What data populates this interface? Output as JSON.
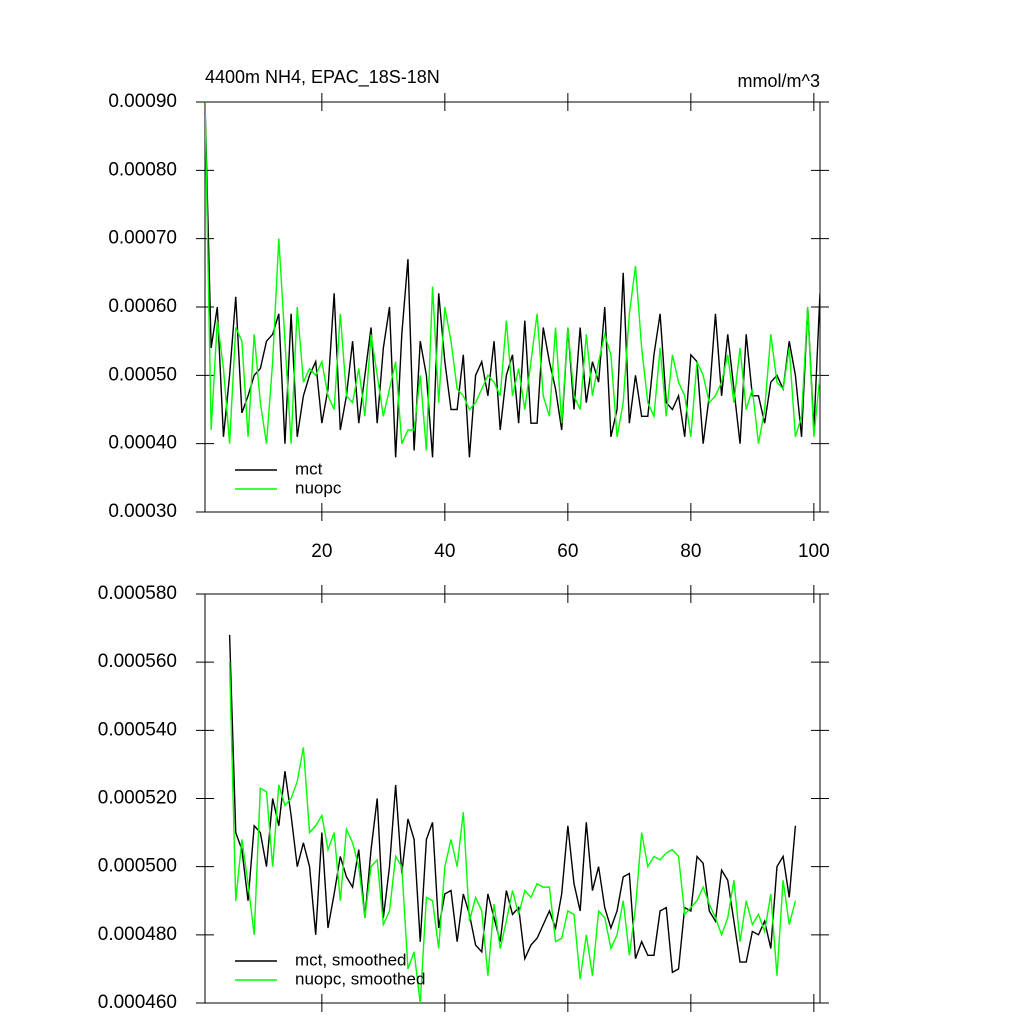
{
  "chart_data": [
    {
      "type": "line",
      "title": "4400m NH4, EPAC_18S-18N",
      "right_title": "mmol/m^3",
      "xlim": [
        1,
        101
      ],
      "xticks": [
        20,
        40,
        60,
        80,
        100
      ],
      "xtick_labels": true,
      "ylim": [
        0.0003,
        0.0009
      ],
      "yticks": [
        {
          "value": 0.0003,
          "label": "0.00030"
        },
        {
          "value": 0.0004,
          "label": "0.00040"
        },
        {
          "value": 0.0005,
          "label": "0.00050"
        },
        {
          "value": 0.0006,
          "label": "0.00060"
        },
        {
          "value": 0.0007,
          "label": "0.00070"
        },
        {
          "value": 0.0008,
          "label": "0.00080"
        },
        {
          "value": 0.0009,
          "label": "0.00090"
        }
      ],
      "legend": "lower left",
      "x": [
        1,
        2,
        3,
        4,
        5,
        6,
        7,
        8,
        9,
        10,
        11,
        12,
        13,
        14,
        15,
        16,
        17,
        18,
        19,
        20,
        21,
        22,
        23,
        24,
        25,
        26,
        27,
        28,
        29,
        30,
        31,
        32,
        33,
        34,
        35,
        36,
        37,
        38,
        39,
        40,
        41,
        42,
        43,
        44,
        45,
        46,
        47,
        48,
        49,
        50,
        51,
        52,
        53,
        54,
        55,
        56,
        57,
        58,
        59,
        60,
        61,
        62,
        63,
        64,
        65,
        66,
        67,
        68,
        69,
        70,
        71,
        72,
        73,
        74,
        75,
        76,
        77,
        78,
        79,
        80,
        81,
        82,
        83,
        84,
        85,
        86,
        87,
        88,
        89,
        90,
        91,
        92,
        93,
        94,
        95,
        96,
        97,
        98,
        99,
        100,
        101
      ],
      "series": [
        {
          "name": "mct",
          "color": "#000000",
          "values": [
            0.0009,
            0.00054,
            0.0006,
            0.00041,
            0.0005,
            0.000615,
            0.000445,
            0.00047,
            0.0005,
            0.00051,
            0.00055,
            0.00056,
            0.00059,
            0.0004,
            0.00059,
            0.00041,
            0.00047,
            0.0005,
            0.00052,
            0.00043,
            0.00048,
            0.00062,
            0.00042,
            0.00047,
            0.00055,
            0.00043,
            0.0005,
            0.00057,
            0.00043,
            0.00054,
            0.0006,
            0.00038,
            0.00056,
            0.00067,
            0.00039,
            0.00055,
            0.0005,
            0.00038,
            0.00062,
            0.00052,
            0.00045,
            0.00045,
            0.00053,
            0.00038,
            0.0005,
            0.00052,
            0.00047,
            0.00055,
            0.00042,
            0.0005,
            0.00053,
            0.00043,
            0.00058,
            0.00043,
            0.00043,
            0.00057,
            0.00052,
            0.00048,
            0.00042,
            0.00057,
            0.00045,
            0.00057,
            0.00046,
            0.00052,
            0.00049,
            0.0006,
            0.00041,
            0.00045,
            0.00065,
            0.00043,
            0.0005,
            0.00044,
            0.00044,
            0.00053,
            0.00059,
            0.00046,
            0.00045,
            0.00047,
            0.00041,
            0.00053,
            0.00052,
            0.0004,
            0.00047,
            0.00059,
            0.00047,
            0.00056,
            0.00048,
            0.0004,
            0.00056,
            0.00047,
            0.00047,
            0.00043,
            0.00049,
            0.0005,
            0.00048,
            0.00055,
            0.0005,
            0.00041,
            0.0006,
            0.00042,
            0.00062
          ]
        },
        {
          "name": "nuopc",
          "color": "#00ff00",
          "values": [
            0.0009,
            0.00042,
            0.00058,
            0.00051,
            0.0004,
            0.00057,
            0.00055,
            0.00041,
            0.00056,
            0.00046,
            0.0004,
            0.00052,
            0.0007,
            0.00055,
            0.0004,
            0.0006,
            0.00049,
            0.00051,
            0.0005,
            0.00052,
            0.00047,
            0.00045,
            0.00059,
            0.00047,
            0.00046,
            0.00051,
            0.00044,
            0.00056,
            0.0005,
            0.00044,
            0.00048,
            0.00052,
            0.0004,
            0.00042,
            0.00042,
            0.0005,
            0.00039,
            0.00063,
            0.00046,
            0.0006,
            0.00055,
            0.00048,
            0.00047,
            0.00045,
            0.00046,
            0.00048,
            0.0005,
            0.00049,
            0.00047,
            0.00058,
            0.00047,
            0.00051,
            0.00045,
            0.00052,
            0.00059,
            0.00047,
            0.00044,
            0.00057,
            0.00043,
            0.00057,
            0.00047,
            0.00045,
            0.00056,
            0.00047,
            0.00052,
            0.00056,
            0.00053,
            0.00041,
            0.00046,
            0.00059,
            0.00066,
            0.00054,
            0.00046,
            0.00044,
            0.00054,
            0.00044,
            0.00053,
            0.00049,
            0.00047,
            0.00041,
            0.00052,
            0.0005,
            0.00046,
            0.00047,
            0.00049,
            0.00053,
            0.00046,
            0.00054,
            0.00045,
            0.00048,
            0.0004,
            0.00045,
            0.00056,
            0.00049,
            0.00048,
            0.00054,
            0.00041,
            0.00044,
            0.0006,
            0.00041,
            0.0005
          ]
        }
      ]
    },
    {
      "type": "line",
      "xlim": [
        1,
        101
      ],
      "xticks": [
        20,
        40,
        60,
        80,
        100
      ],
      "xtick_labels": false,
      "ylim": [
        0.00046,
        0.00058
      ],
      "yticks": [
        {
          "value": 0.00046,
          "label": "0.000460"
        },
        {
          "value": 0.00048,
          "label": "0.000480"
        },
        {
          "value": 0.0005,
          "label": "0.000500"
        },
        {
          "value": 0.00052,
          "label": "0.000520"
        },
        {
          "value": 0.00054,
          "label": "0.000540"
        },
        {
          "value": 0.00056,
          "label": "0.000560"
        },
        {
          "value": 0.00058,
          "label": "0.000580"
        }
      ],
      "legend": "lower left",
      "x": [
        5,
        6,
        7,
        8,
        9,
        10,
        11,
        12,
        13,
        14,
        15,
        16,
        17,
        18,
        19,
        20,
        21,
        22,
        23,
        24,
        25,
        26,
        27,
        28,
        29,
        30,
        31,
        32,
        33,
        34,
        35,
        36,
        37,
        38,
        39,
        40,
        41,
        42,
        43,
        44,
        45,
        46,
        47,
        48,
        49,
        50,
        51,
        52,
        53,
        54,
        55,
        56,
        57,
        58,
        59,
        60,
        61,
        62,
        63,
        64,
        65,
        66,
        67,
        68,
        69,
        70,
        71,
        72,
        73,
        74,
        75,
        76,
        77,
        78,
        79,
        80,
        81,
        82,
        83,
        84,
        85,
        86,
        87,
        88,
        89,
        90,
        91,
        92,
        93,
        94,
        95,
        96,
        97
      ],
      "series": [
        {
          "name": "mct, smoothed",
          "color": "#000000",
          "values": [
            0.000568,
            0.00051,
            0.000505,
            0.00049,
            0.000512,
            0.00051,
            0.0005,
            0.00052,
            0.000512,
            0.000528,
            0.000515,
            0.0005,
            0.000507,
            0.0005,
            0.00048,
            0.00051,
            0.000482,
            0.000492,
            0.000503,
            0.000497,
            0.000494,
            0.000505,
            0.000485,
            0.000505,
            0.00052,
            0.000485,
            0.0005,
            0.000524,
            0.000498,
            0.000514,
            0.000508,
            0.000478,
            0.000508,
            0.000513,
            0.000482,
            0.000492,
            0.000493,
            0.000478,
            0.000492,
            0.000486,
            0.000477,
            0.000475,
            0.000492,
            0.000485,
            0.000478,
            0.000493,
            0.000486,
            0.000488,
            0.000473,
            0.000477,
            0.000479,
            0.000483,
            0.000487,
            0.000482,
            0.000492,
            0.000512,
            0.000495,
            0.000487,
            0.000513,
            0.000493,
            0.0005,
            0.000488,
            0.000482,
            0.000487,
            0.000497,
            0.000498,
            0.000473,
            0.000478,
            0.000474,
            0.000474,
            0.000487,
            0.000488,
            0.000469,
            0.00047,
            0.000488,
            0.000487,
            0.000503,
            0.000501,
            0.000487,
            0.000484,
            0.000499,
            0.000496,
            0.000484,
            0.000472,
            0.000472,
            0.000481,
            0.00048,
            0.000484,
            0.000476,
            0.0005,
            0.000503,
            0.000491,
            0.000512
          ]
        },
        {
          "name": "nuopc, smoothed",
          "color": "#00ff00",
          "values": [
            0.00056,
            0.00049,
            0.000508,
            0.000495,
            0.00048,
            0.000523,
            0.000522,
            0.0005,
            0.000524,
            0.000518,
            0.00052,
            0.000525,
            0.000535,
            0.00051,
            0.000512,
            0.000515,
            0.000505,
            0.00051,
            0.00049,
            0.000511,
            0.000507,
            0.0005,
            0.000485,
            0.0005,
            0.000502,
            0.000483,
            0.000487,
            0.000503,
            0.0005,
            0.00047,
            0.000475,
            0.00046,
            0.000491,
            0.00049,
            0.000476,
            0.0005,
            0.000508,
            0.0005,
            0.000516,
            0.000484,
            0.000491,
            0.000487,
            0.000468,
            0.000489,
            0.000476,
            0.000484,
            0.000493,
            0.000486,
            0.000493,
            0.000491,
            0.000495,
            0.000494,
            0.000494,
            0.000478,
            0.000479,
            0.000487,
            0.000486,
            0.000467,
            0.00048,
            0.000468,
            0.000487,
            0.000485,
            0.000476,
            0.00048,
            0.00049,
            0.000474,
            0.000488,
            0.00051,
            0.0005,
            0.000503,
            0.000502,
            0.000504,
            0.000505,
            0.000503,
            0.000486,
            0.000488,
            0.00049,
            0.000494,
            0.000489,
            0.000485,
            0.00048,
            0.000485,
            0.000496,
            0.000478,
            0.00049,
            0.000483,
            0.000486,
            0.000481,
            0.000492,
            0.000468,
            0.000496,
            0.000483,
            0.00049
          ]
        }
      ]
    }
  ]
}
